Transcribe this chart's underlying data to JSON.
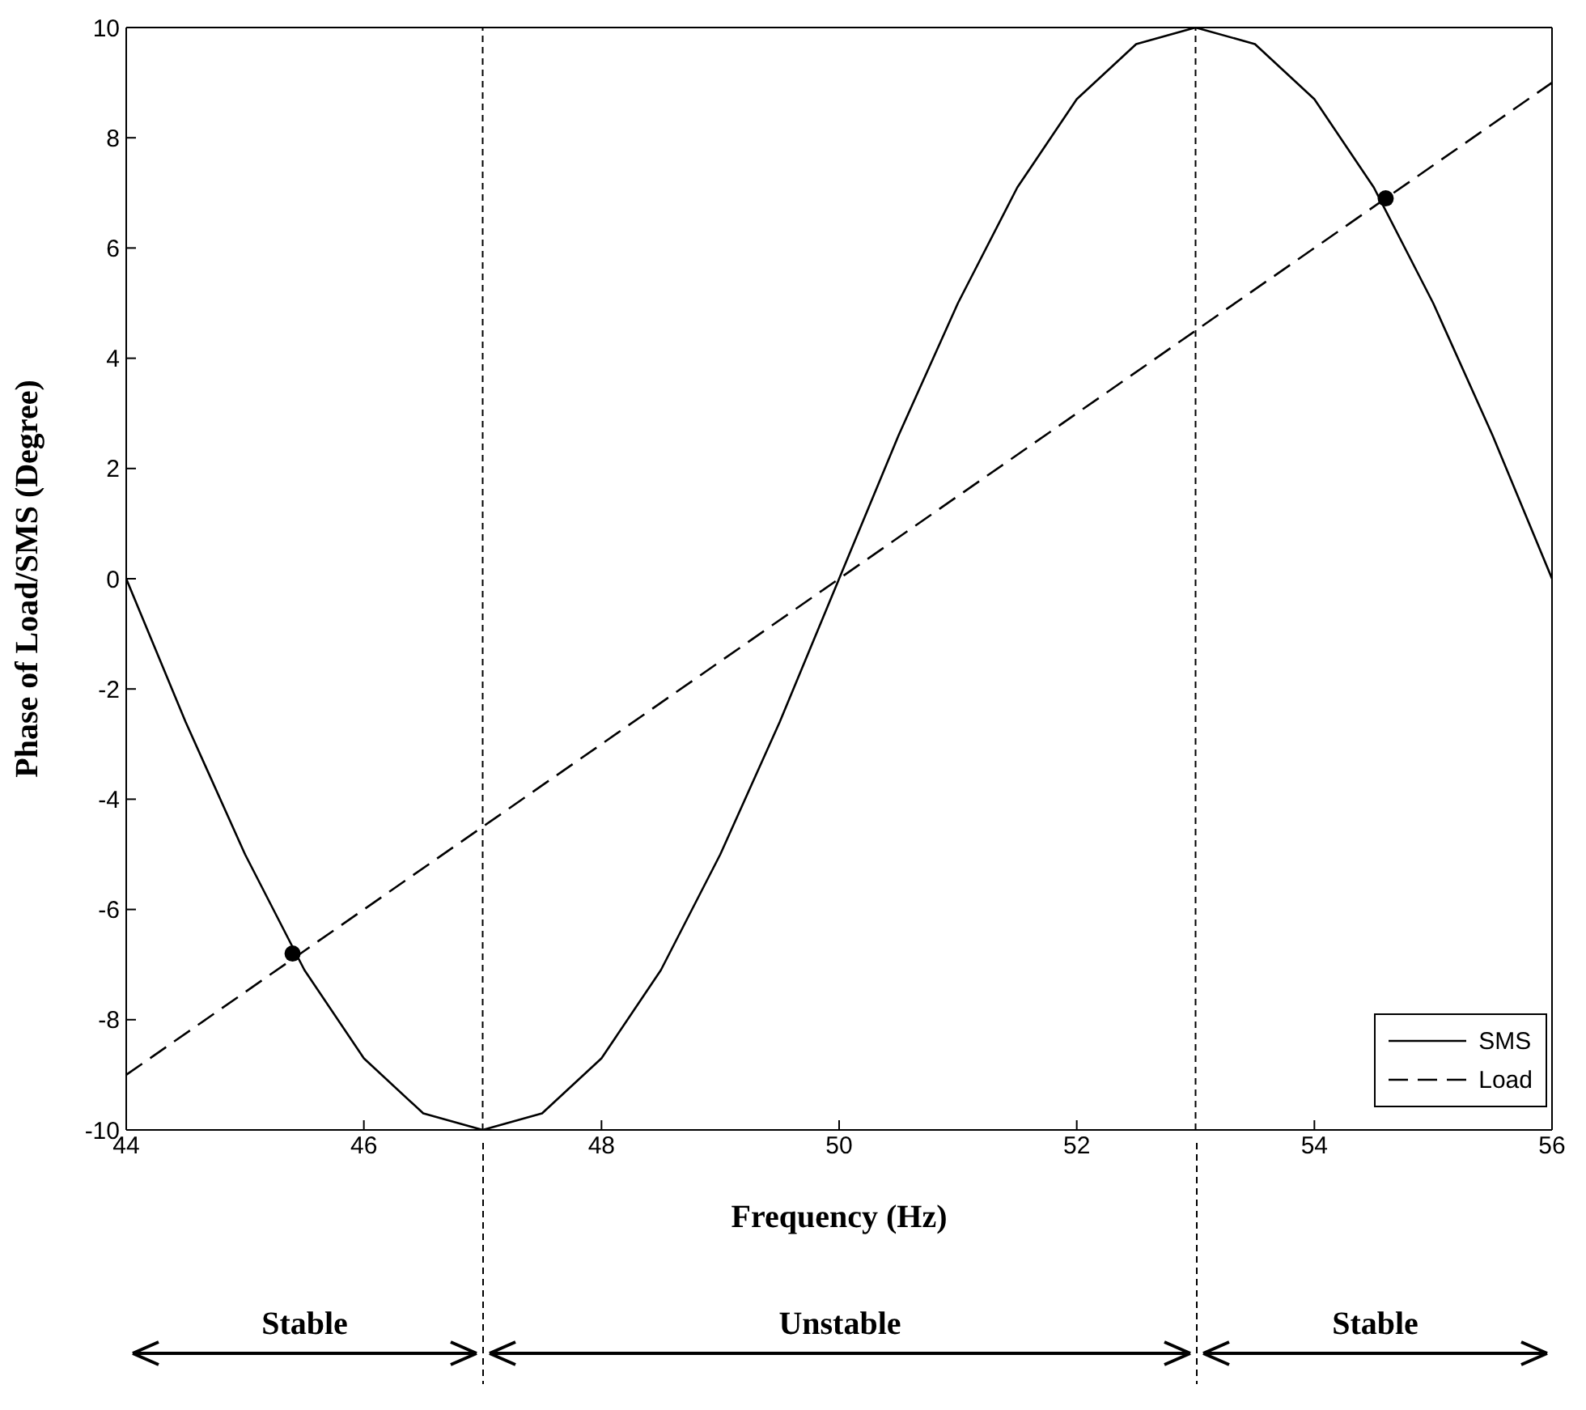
{
  "chart_data": {
    "type": "line",
    "xlabel": "Frequency (Hz)",
    "ylabel": "Phase of Load/SMS (Degree)",
    "xlim": [
      44,
      56
    ],
    "xticks": [
      44,
      46,
      48,
      50,
      52,
      54,
      56
    ],
    "ylim": [
      -10,
      10
    ],
    "yticks": [
      -10,
      -8,
      -6,
      -4,
      -2,
      0,
      2,
      4,
      6,
      8,
      10
    ],
    "legend": "bottom right",
    "series": [
      {
        "name": "SMS",
        "color": "#000000",
        "line_style": "solid",
        "x": [
          44,
          44.5,
          45,
          45.5,
          46,
          46.5,
          47,
          47.5,
          48,
          48.5,
          49,
          49.5,
          50,
          50.5,
          51,
          51.5,
          52,
          52.5,
          53,
          53.5,
          54,
          54.5,
          55,
          55.5,
          56
        ],
        "values": [
          0,
          -2.6,
          -5,
          -7.1,
          -8.7,
          -9.7,
          -10,
          -9.7,
          -8.7,
          -7.1,
          -5,
          -2.6,
          0,
          2.6,
          5,
          7.1,
          8.7,
          9.7,
          10,
          9.7,
          8.7,
          7.1,
          5,
          2.6,
          0
        ]
      },
      {
        "name": "Load",
        "color": "#000000",
        "line_style": "dashed",
        "x": [
          44,
          56
        ],
        "values": [
          -9,
          9
        ]
      },
      {
        "type": "scatter",
        "color": "#000000",
        "marker": "circle",
        "x": [
          45.4,
          54.6
        ],
        "values": [
          -6.8,
          6.9
        ]
      }
    ],
    "ref_lines": [
      {
        "axis": "x",
        "value": 47,
        "color": "#000000",
        "line_style": "dashed"
      },
      {
        "axis": "x",
        "value": 53,
        "color": "#000000",
        "line_style": "dashed"
      }
    ],
    "annotations": [
      "Stable",
      "Unstable",
      "Stable"
    ]
  }
}
